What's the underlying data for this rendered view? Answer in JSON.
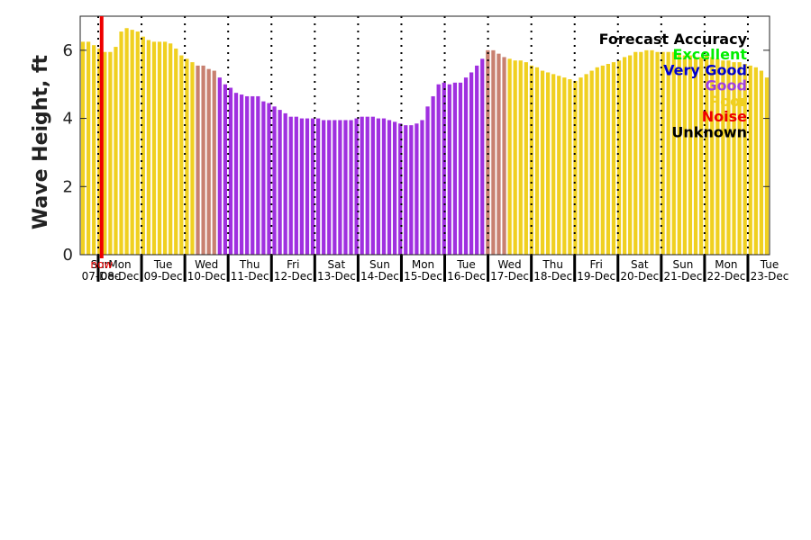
{
  "chart_data": {
    "type": "bar",
    "ylabel": "Wave Height, ft",
    "ylim": [
      0,
      7
    ],
    "yticks": [
      0,
      2,
      4,
      6
    ],
    "now_label": "now",
    "now_index": 4,
    "days": [
      {
        "weekday": "Sun",
        "date": "07-Dec"
      },
      {
        "weekday": "Mon",
        "date": "08-Dec"
      },
      {
        "weekday": "Tue",
        "date": "09-Dec"
      },
      {
        "weekday": "Wed",
        "date": "10-Dec"
      },
      {
        "weekday": "Thu",
        "date": "11-Dec"
      },
      {
        "weekday": "Fri",
        "date": "12-Dec"
      },
      {
        "weekday": "Sat",
        "date": "13-Dec"
      },
      {
        "weekday": "Sun",
        "date": "14-Dec"
      },
      {
        "weekday": "Mon",
        "date": "15-Dec"
      },
      {
        "weekday": "Tue",
        "date": "16-Dec"
      },
      {
        "weekday": "Wed",
        "date": "17-Dec"
      },
      {
        "weekday": "Thu",
        "date": "18-Dec"
      },
      {
        "weekday": "Fri",
        "date": "19-Dec"
      },
      {
        "weekday": "Sat",
        "date": "20-Dec"
      },
      {
        "weekday": "Sun",
        "date": "21-Dec"
      },
      {
        "weekday": "Mon",
        "date": "22-Dec"
      },
      {
        "weekday": "Tue",
        "date": "23-Dec"
      }
    ],
    "legend": {
      "title": "Forecast Accuracy",
      "entries": [
        {
          "label": "Excellent",
          "color": "#00ee00"
        },
        {
          "label": "Very Good",
          "color": "#0000cc"
        },
        {
          "label": "Good",
          "color": "#a040e0"
        },
        {
          "label": "Poor",
          "color": "#f0d020"
        },
        {
          "label": "Noise",
          "color": "#ee0000"
        },
        {
          "label": "Unknown",
          "color": "#000000"
        }
      ]
    },
    "values": [
      6.25,
      6.25,
      6.15,
      6.05,
      5.95,
      5.95,
      6.1,
      6.55,
      6.65,
      6.6,
      6.55,
      6.4,
      6.3,
      6.25,
      6.25,
      6.25,
      6.2,
      6.05,
      5.85,
      5.75,
      5.65,
      5.55,
      5.55,
      5.45,
      5.4,
      5.2,
      5.0,
      4.9,
      4.75,
      4.7,
      4.65,
      4.65,
      4.65,
      4.5,
      4.45,
      4.35,
      4.25,
      4.15,
      4.05,
      4.05,
      4.0,
      4.0,
      4.0,
      4.0,
      3.95,
      3.95,
      3.95,
      3.95,
      3.95,
      3.95,
      4.0,
      4.05,
      4.05,
      4.05,
      4.0,
      4.0,
      3.95,
      3.9,
      3.85,
      3.8,
      3.8,
      3.85,
      3.95,
      4.35,
      4.65,
      5.0,
      5.05,
      5.0,
      5.05,
      5.05,
      5.2,
      5.35,
      5.55,
      5.75,
      6.0,
      6.0,
      5.9,
      5.8,
      5.75,
      5.7,
      5.7,
      5.65,
      5.55,
      5.5,
      5.4,
      5.35,
      5.3,
      5.25,
      5.2,
      5.15,
      5.1,
      5.2,
      5.3,
      5.4,
      5.5,
      5.55,
      5.6,
      5.65,
      5.7,
      5.8,
      5.85,
      5.95,
      5.95,
      6.0,
      6.0,
      5.95,
      5.95,
      5.95,
      5.95,
      5.9,
      5.85,
      5.85,
      5.8,
      5.8,
      5.85,
      5.8,
      5.75,
      5.7,
      5.7,
      5.65,
      5.65,
      5.6,
      5.55,
      5.5,
      5.4,
      5.2
    ],
    "accuracy": [
      "Poor",
      "Poor",
      "Poor",
      "Poor",
      "Poor",
      "Poor",
      "Poor",
      "Poor",
      "Poor",
      "Poor",
      "Poor",
      "Poor",
      "Poor",
      "Poor",
      "Poor",
      "Poor",
      "Poor",
      "Poor",
      "Poor",
      "Poor",
      "Poor",
      "Mixed",
      "Mixed",
      "Mixed",
      "Mixed",
      "Good",
      "Good",
      "Good",
      "Good",
      "Good",
      "Good",
      "Good",
      "Good",
      "Good",
      "Good",
      "Good",
      "Good",
      "Good",
      "Good",
      "Good",
      "Good",
      "Good",
      "Good",
      "Good",
      "Good",
      "Good",
      "Good",
      "Good",
      "Good",
      "Good",
      "Good",
      "Good",
      "Good",
      "Good",
      "Good",
      "Good",
      "Good",
      "Good",
      "Good",
      "Good",
      "Good",
      "Good",
      "Good",
      "Good",
      "Good",
      "Good",
      "Good",
      "Good",
      "Good",
      "Good",
      "Good",
      "Good",
      "Good",
      "Good",
      "Mixed",
      "Mixed",
      "Mixed",
      "Mixed",
      "Poor",
      "Poor",
      "Poor",
      "Poor",
      "Poor",
      "Poor",
      "Poor",
      "Poor",
      "Poor",
      "Poor",
      "Poor",
      "Poor",
      "Poor",
      "Poor",
      "Poor",
      "Poor",
      "Poor",
      "Poor",
      "Poor",
      "Poor",
      "Poor",
      "Poor",
      "Poor",
      "Poor",
      "Poor",
      "Poor",
      "Poor",
      "Poor",
      "Poor",
      "Poor",
      "Poor",
      "Poor",
      "Poor",
      "Poor",
      "Poor",
      "Poor",
      "Poor",
      "Poor",
      "Poor",
      "Poor",
      "Poor",
      "Poor",
      "Poor",
      "Poor",
      "Poor",
      "Poor",
      "Poor",
      "Poor"
    ],
    "colors": {
      "Poor": "#f0d020",
      "Good": "#a030e0",
      "Mixed": "#c88070",
      "now_line": "#ee0000",
      "now_text": "#ee0000"
    }
  }
}
